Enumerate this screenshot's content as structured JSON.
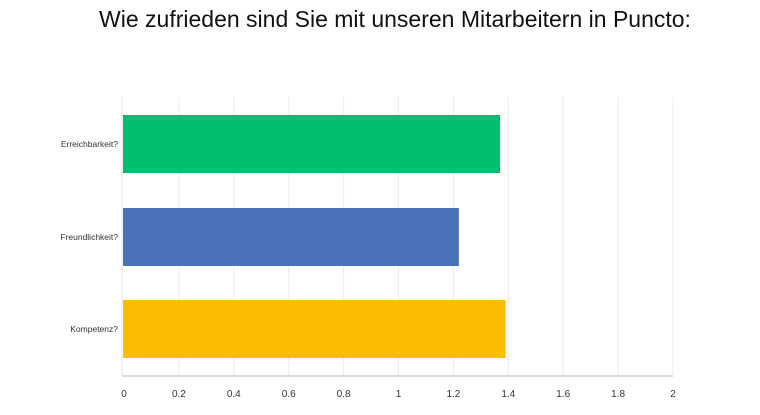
{
  "chart_data": {
    "type": "bar",
    "orientation": "horizontal",
    "title": "Wie zufrieden sind Sie mit unseren Mitarbeitern in Puncto:",
    "categories": [
      "Erreichbarkeit?",
      "Freundlichkeit?",
      "Kompetenz?"
    ],
    "values": [
      1.37,
      1.22,
      1.39
    ],
    "colors": [
      "#00bf6f",
      "#4a72b8",
      "#fbbd00"
    ],
    "xlim": [
      0,
      2
    ],
    "xticks": [
      "0",
      "0.2",
      "0.4",
      "0.6",
      "0.8",
      "1",
      "1.2",
      "1.4",
      "1.6",
      "1.8",
      "2"
    ],
    "grid": true,
    "legend": "none",
    "xlabel": "",
    "ylabel": ""
  }
}
